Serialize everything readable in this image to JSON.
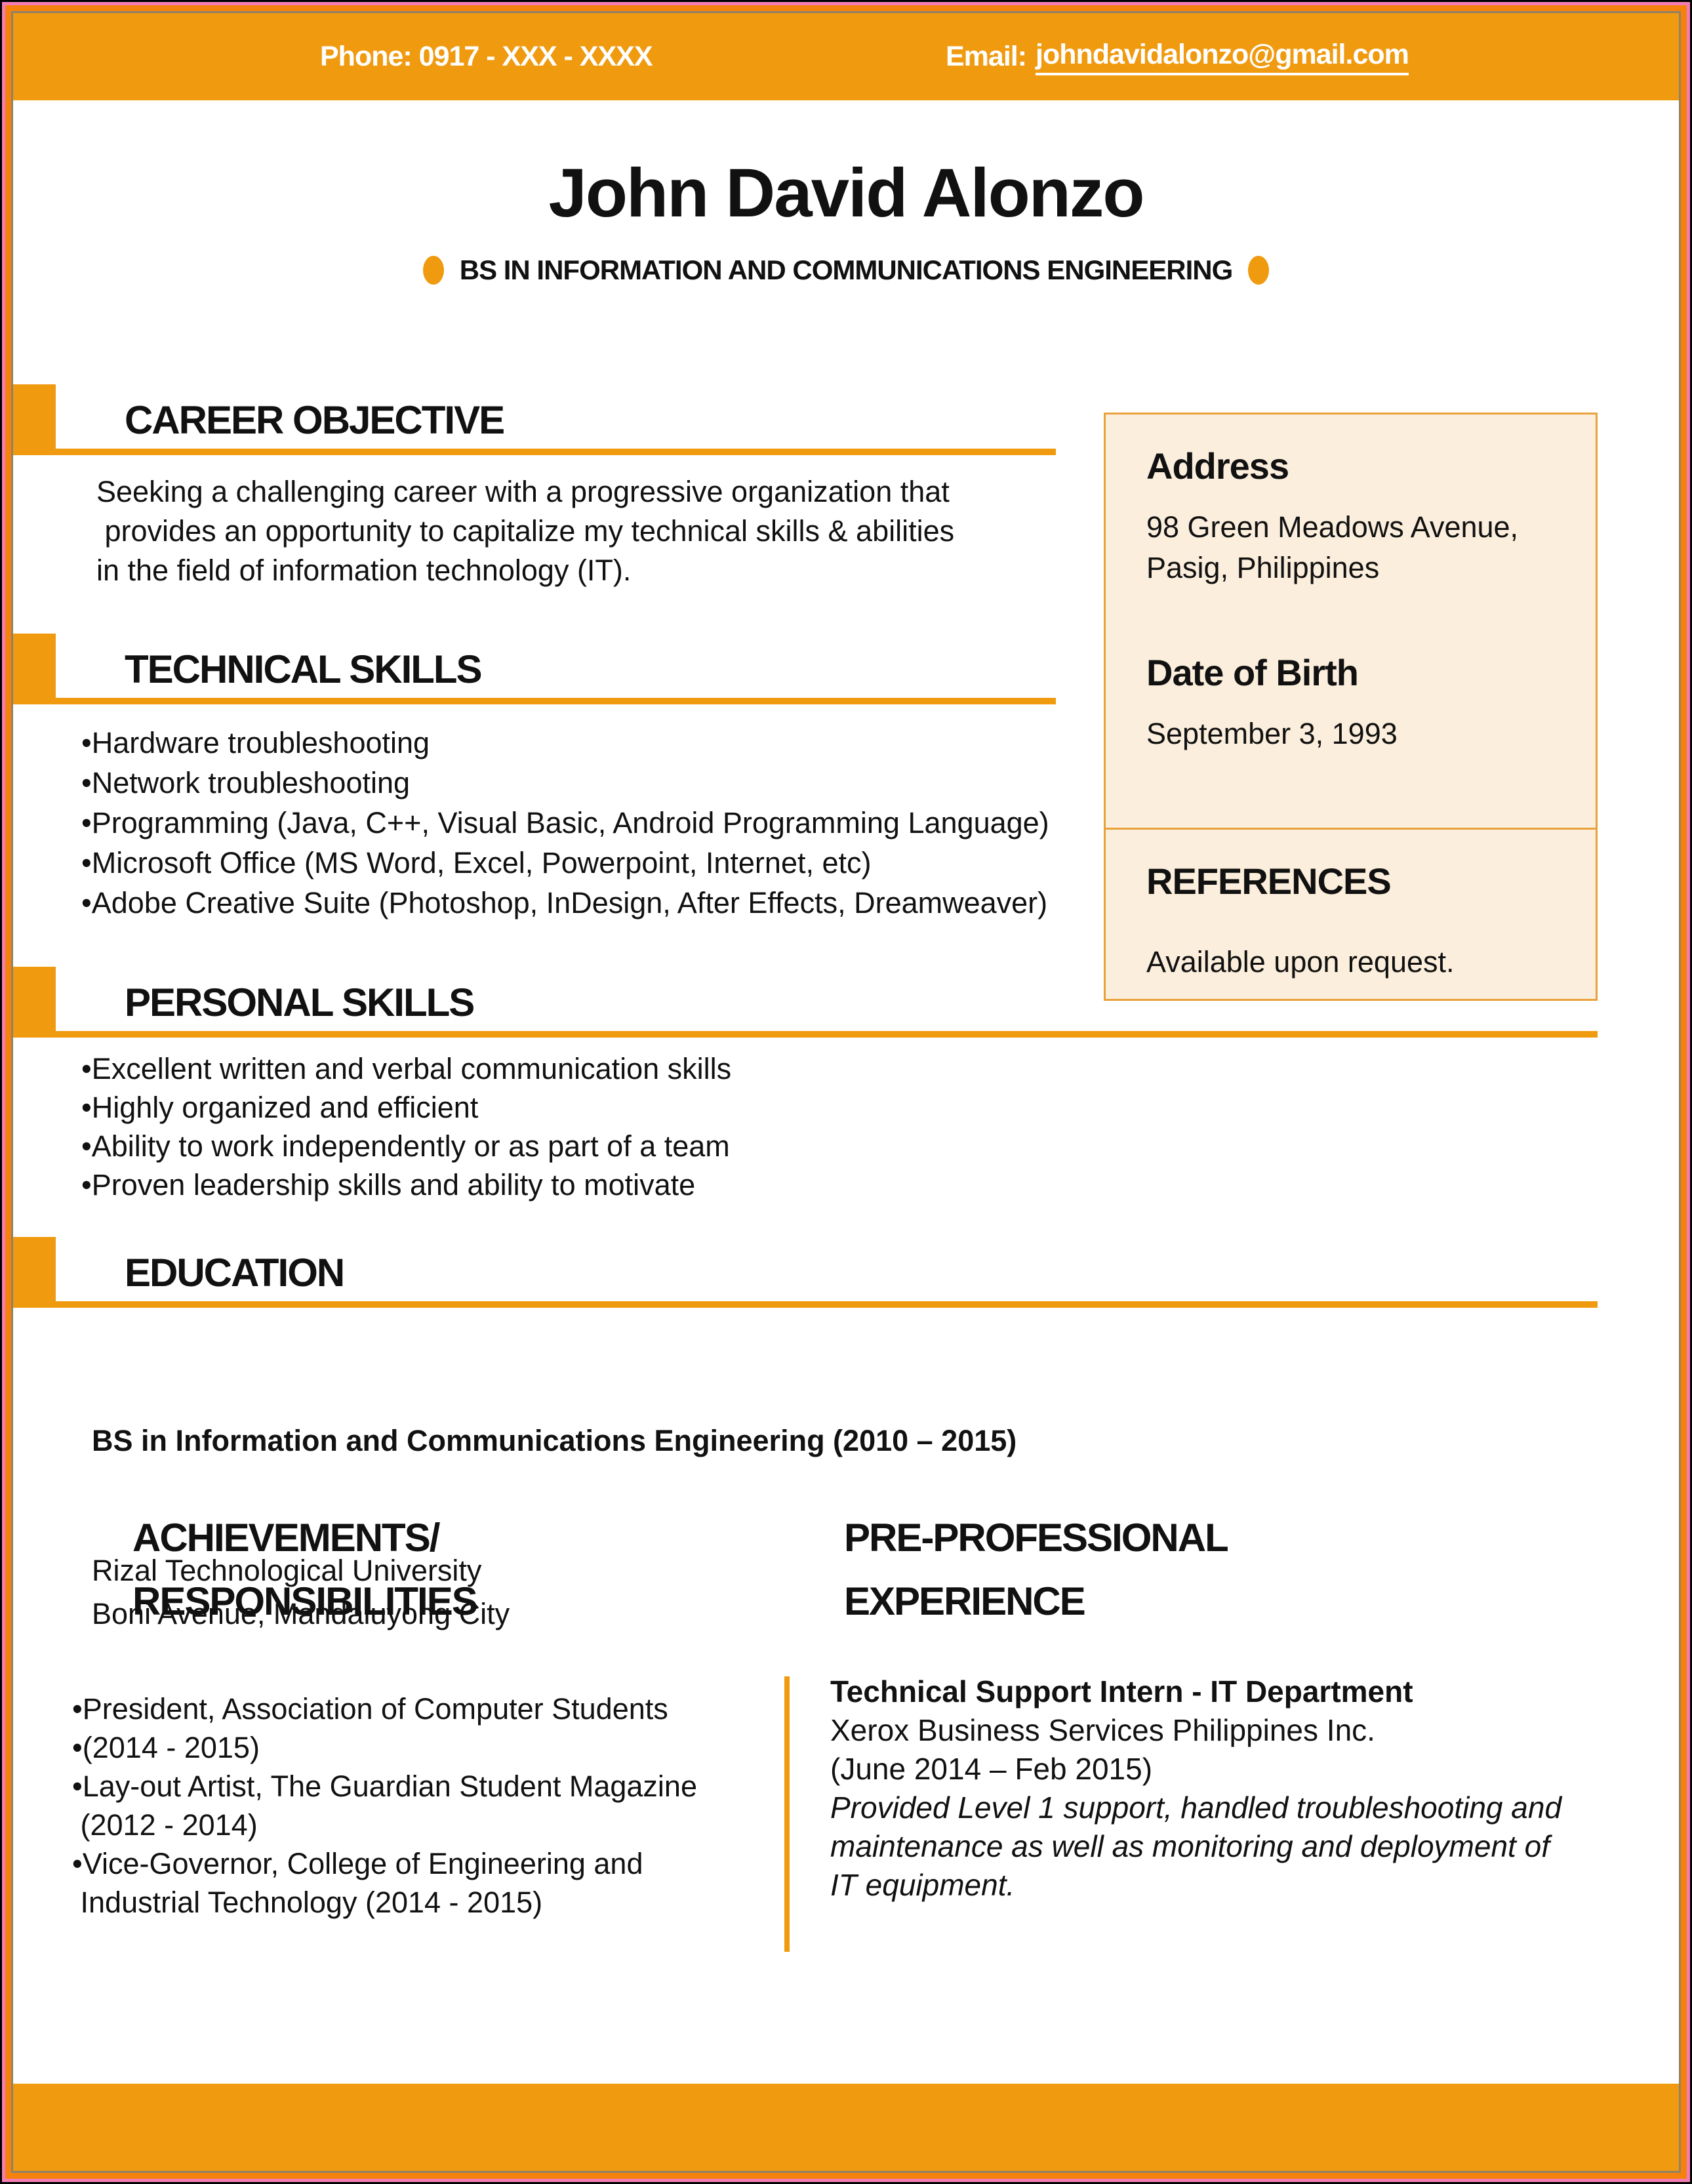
{
  "colors": {
    "golden": "#F09A10",
    "frame_orange": "#F5820D",
    "frame_pink": "#F47EB4",
    "frame_gray": "#8E8268",
    "cream": "#FBEEDC",
    "cream_border": "#E9A23B",
    "ink": "#111111"
  },
  "header": {
    "phone": "Phone: 0917 - XXX - XXXX",
    "email_label": "Email:",
    "email_address": "johndavidalonzo@gmail.com"
  },
  "identity": {
    "name": "John David Alonzo",
    "degree": "BS IN INFORMATION AND COMMUNICATIONS ENGINEERING"
  },
  "career_objective": {
    "title": "CAREER OBJECTIVE",
    "lines": [
      "Seeking a challenging career with a progressive organization that",
      " provides an opportunity to capitalize my technical skills & abilities",
      "in the field of information technology (IT)."
    ]
  },
  "technical_skills": {
    "title": "TECHNICAL SKILLS",
    "items": [
      "•Hardware troubleshooting",
      "•Network troubleshooting",
      "•Programming (Java, C++, Visual Basic, Android Programming Language)",
      "•Microsoft Office (MS Word, Excel, Powerpoint, Internet, etc)",
      "•Adobe Creative Suite (Photoshop, InDesign, After Effects, Dreamweaver)"
    ]
  },
  "personal_skills": {
    "title": "PERSONAL SKILLS",
    "items": [
      "•Excellent written and verbal communication skills",
      "•Highly organized and efficient",
      "•Ability to work independently or as part of a team",
      "•Proven leadership skills and ability to motivate"
    ]
  },
  "education": {
    "title": "EDUCATION",
    "degree_line": "BS in Information and Communications Engineering (2010 – 2015)",
    "lines": [
      "Rizal Technological University",
      "Boni Avenue, Mandaluyong City"
    ]
  },
  "address_box": {
    "title": "Address",
    "lines": [
      "98 Green Meadows Avenue,",
      "Pasig, Philippines"
    ],
    "dob_title": "Date of Birth",
    "dob": "September 3, 1993"
  },
  "references_box": {
    "title": "REFERENCES",
    "note": "Available upon request."
  },
  "achievements": {
    "title_lines": [
      "ACHIEVEMENTS/",
      "RESPONSIBILITIES"
    ],
    "items": [
      "•President, Association of Computer Students",
      "•(2014 - 2015)",
      "•Lay-out Artist, The Guardian Student Magazine",
      " (2012 - 2014)",
      "•Vice-Governor, College of Engineering and",
      " Industrial Technology (2014 - 2015)"
    ]
  },
  "experience": {
    "title_lines": [
      "PRE-PROFESSIONAL",
      "EXPERIENCE"
    ],
    "role": "Technical Support Intern - IT Department",
    "lines": [
      "Xerox Business Services Philippines Inc.",
      "(June 2014 – Feb 2015)"
    ],
    "italic_lines": [
      "Provided Level 1 support, handled troubleshooting and",
      "maintenance as well as monitoring and deployment of",
      "IT equipment."
    ]
  }
}
